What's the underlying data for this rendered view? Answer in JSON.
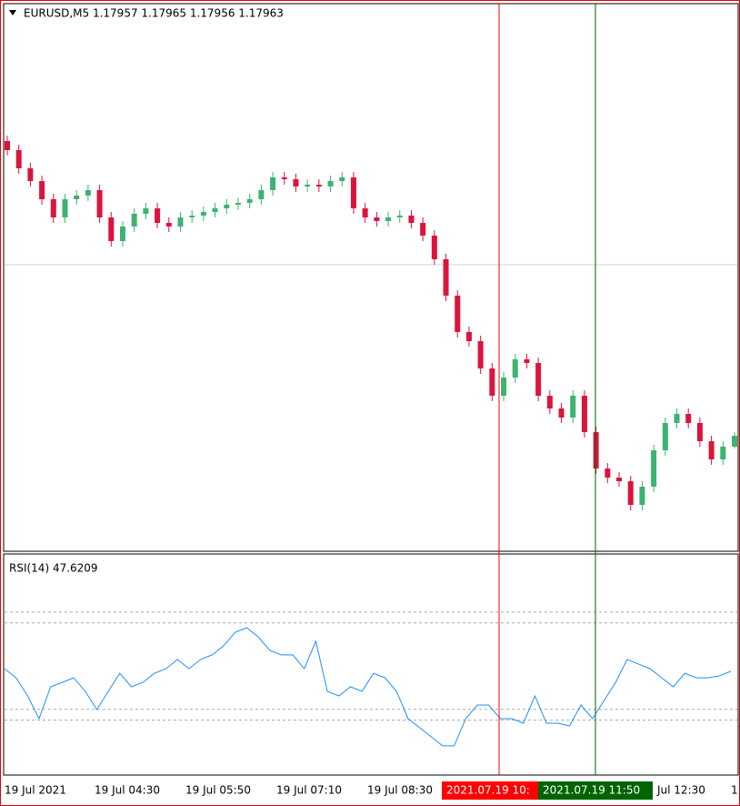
{
  "chart_data": [
    {
      "type": "candlestick",
      "title": "EURUSD,M5  1.17957 1.17965 1.17956 1.17963",
      "open": [
        1.18125,
        1.1812,
        1.1811,
        1.18103,
        1.18093,
        1.18083,
        1.18093,
        1.18095,
        1.18098,
        1.18083,
        1.1807,
        1.18078,
        1.18085,
        1.18088,
        1.1808,
        1.18078,
        1.18083,
        1.18084,
        1.18086,
        1.18088,
        1.1809,
        1.18091,
        1.18093,
        1.18098,
        1.18105,
        1.18104,
        1.181,
        1.18101,
        1.181,
        1.18103,
        1.18105,
        1.18088,
        1.18083,
        1.18081,
        1.18083,
        1.18084,
        1.1808,
        1.18073,
        1.1806,
        1.1804,
        1.1802,
        1.18015,
        1.18,
        1.17985,
        1.17995,
        1.18005,
        1.18003,
        1.17985,
        1.17978,
        1.17973,
        1.17985,
        1.17965,
        1.17945,
        1.1794,
        1.17938,
        1.17925,
        1.17935,
        1.17955,
        1.1797,
        1.17975,
        1.1797,
        1.1796,
        1.1795,
        1.17957
      ],
      "high": [
        1.18128,
        1.18123,
        1.18113,
        1.18106,
        1.18096,
        1.18096,
        1.18098,
        1.18101,
        1.18101,
        1.18086,
        1.18081,
        1.18088,
        1.18091,
        1.18091,
        1.18083,
        1.18086,
        1.18087,
        1.18089,
        1.18091,
        1.18093,
        1.18094,
        1.18096,
        1.18101,
        1.18108,
        1.18108,
        1.18107,
        1.18104,
        1.18104,
        1.18106,
        1.18108,
        1.18108,
        1.18091,
        1.18086,
        1.18086,
        1.18087,
        1.18087,
        1.18083,
        1.18076,
        1.18063,
        1.18043,
        1.18023,
        1.18018,
        1.18003,
        1.17998,
        1.18008,
        1.18008,
        1.18006,
        1.17988,
        1.17981,
        1.17988,
        1.17988,
        1.17968,
        1.17948,
        1.17943,
        1.17941,
        1.17938,
        1.17958,
        1.17973,
        1.17978,
        1.17978,
        1.17973,
        1.17963,
        1.1796,
        1.17965
      ],
      "low": [
        1.18117,
        1.18107,
        1.181,
        1.1809,
        1.1808,
        1.1808,
        1.1809,
        1.18092,
        1.1808,
        1.18067,
        1.18067,
        1.18075,
        1.18082,
        1.18077,
        1.18075,
        1.18075,
        1.1808,
        1.18081,
        1.18083,
        1.18085,
        1.18087,
        1.18088,
        1.1809,
        1.18095,
        1.18101,
        1.18097,
        1.18097,
        1.18097,
        1.18097,
        1.181,
        1.18085,
        1.1808,
        1.18078,
        1.18078,
        1.1808,
        1.18077,
        1.1807,
        1.18057,
        1.18037,
        1.18017,
        1.18012,
        1.17997,
        1.17982,
        1.17982,
        1.17992,
        1.18,
        1.17982,
        1.17975,
        1.1797,
        1.1797,
        1.17962,
        1.17942,
        1.17937,
        1.17935,
        1.17922,
        1.17922,
        1.17932,
        1.17952,
        1.17967,
        1.17967,
        1.17957,
        1.17947,
        1.17947,
        1.17956
      ],
      "close": [
        1.1812,
        1.1811,
        1.18103,
        1.18093,
        1.18083,
        1.18093,
        1.18095,
        1.18098,
        1.18083,
        1.1807,
        1.18078,
        1.18085,
        1.18088,
        1.1808,
        1.18078,
        1.18083,
        1.18084,
        1.18086,
        1.18088,
        1.1809,
        1.18091,
        1.18093,
        1.18098,
        1.18105,
        1.18104,
        1.181,
        1.18101,
        1.181,
        1.18103,
        1.18105,
        1.18088,
        1.18083,
        1.18081,
        1.18083,
        1.18084,
        1.1808,
        1.18073,
        1.1806,
        1.1804,
        1.1802,
        1.18015,
        1.18,
        1.17985,
        1.17995,
        1.18005,
        1.18003,
        1.17985,
        1.17978,
        1.17973,
        1.17985,
        1.17965,
        1.17945,
        1.1794,
        1.17938,
        1.17925,
        1.17935,
        1.17955,
        1.1797,
        1.17975,
        1.1797,
        1.1796,
        1.1795,
        1.17957,
        1.17963
      ],
      "ylim": [
        1.179,
        1.182
      ],
      "hline": 1.18057,
      "colors": {
        "up": "#3cb371",
        "down": "#dc143c",
        "flat": "#000000"
      }
    },
    {
      "type": "line",
      "title": "RSI(14) 47.6209",
      "values": [
        48.8,
        44.6,
        36.2,
        25.7,
        40.4,
        42.5,
        44.6,
        38.3,
        29.9,
        38.3,
        46.7,
        40.4,
        42.5,
        46.7,
        48.8,
        53.1,
        48.8,
        53.1,
        55.2,
        59.4,
        65.7,
        67.8,
        63.6,
        57.3,
        55.2,
        55.2,
        48.8,
        61.5,
        38.3,
        36.2,
        40.4,
        38.3,
        46.7,
        44.6,
        38.3,
        25.7,
        21.5,
        17.3,
        13.1,
        13.1,
        25.7,
        32.0,
        32.0,
        25.7,
        25.7,
        23.6,
        36.2,
        23.6,
        23.6,
        22.3,
        32.0,
        25.7,
        34.1,
        42.5,
        53.1,
        50.9,
        48.8,
        44.6,
        40.4,
        46.7,
        44.6,
        44.6,
        45.5,
        47.6209
      ],
      "color": "#1e90ff",
      "ylim": [
        0,
        100
      ],
      "levels": [
        75,
        70,
        30,
        25
      ]
    }
  ],
  "time_labels": [
    "19 Jul 2021",
    "19 Jul 04:30",
    "19 Jul 05:50",
    "19 Jul 07:10",
    "19 Jul 08:30",
    "Jul 12:30",
    "1"
  ],
  "cursor_labels": [
    "2021.07.19 10:",
    "2021.07.19 11:50"
  ]
}
